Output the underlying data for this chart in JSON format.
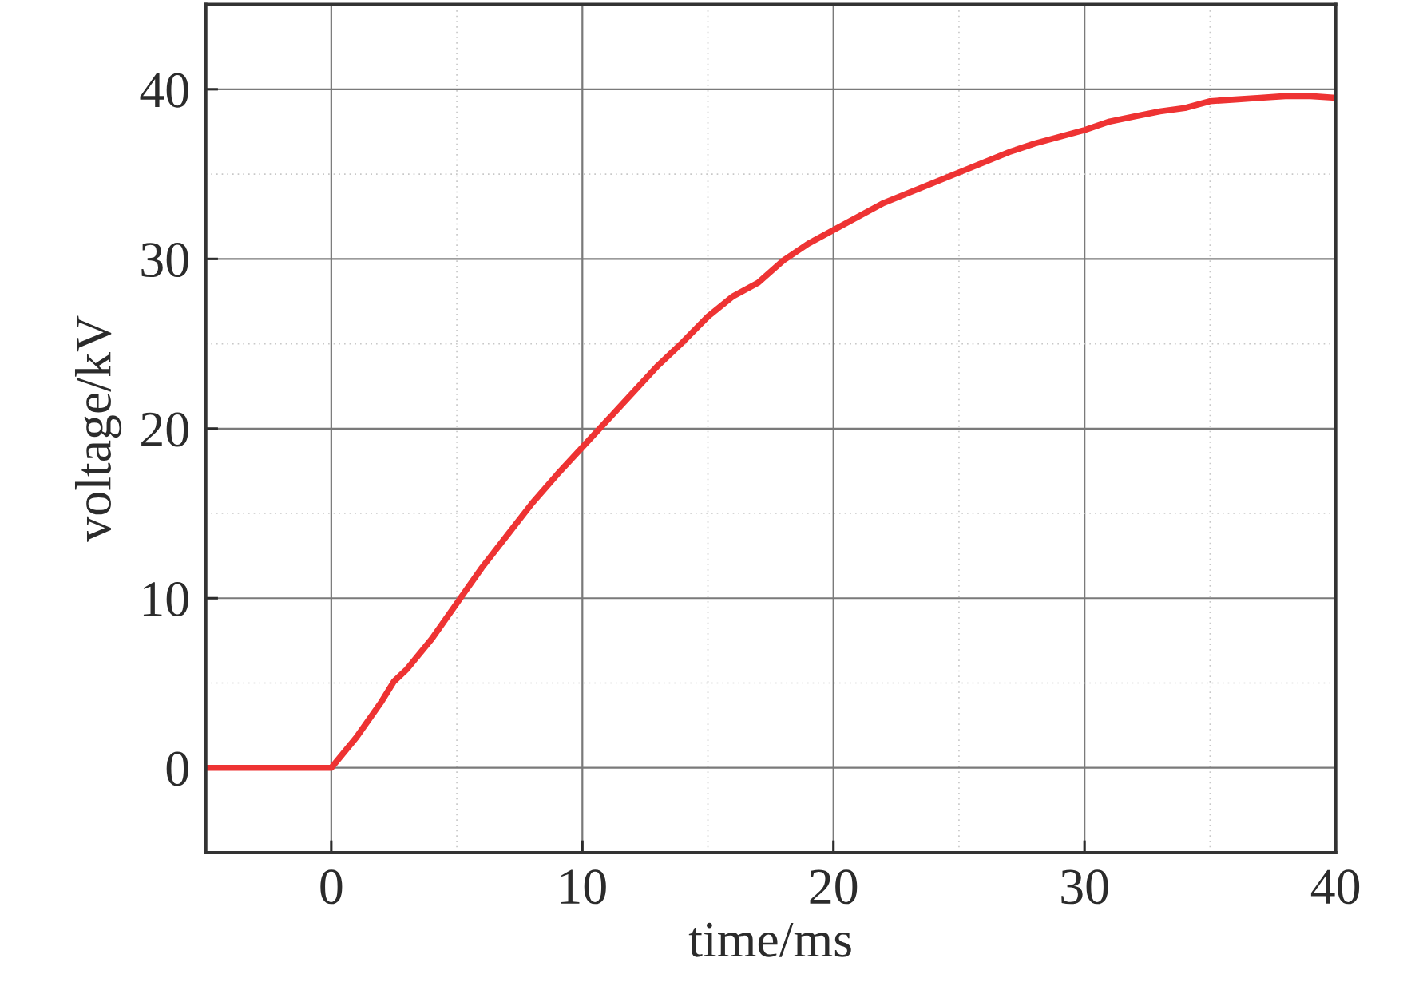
{
  "chart_data": {
    "type": "line",
    "xlabel": "time/ms",
    "ylabel": "voltage/kV",
    "xlim": [
      -5,
      40
    ],
    "ylim": [
      -5,
      45
    ],
    "xticks": [
      0,
      {
        "value": 5,
        "label": null
      },
      10,
      {
        "value": 15,
        "label": null
      },
      20,
      {
        "value": 25,
        "label": null
      },
      30,
      {
        "value": 35,
        "label": null
      },
      40
    ],
    "yticks": [
      0,
      {
        "value": 5,
        "label": null
      },
      10,
      {
        "value": 15,
        "label": null
      },
      20,
      {
        "value": 25,
        "label": null
      },
      30,
      {
        "value": 35,
        "label": null
      },
      40
    ],
    "grid": true,
    "x": [
      -5,
      -2.5,
      0,
      1,
      2,
      2.5,
      3,
      4,
      5,
      6,
      7,
      8,
      9,
      10,
      11,
      12,
      13,
      14,
      15,
      16,
      17,
      18,
      19,
      20,
      21,
      22,
      23,
      24,
      25,
      26,
      27,
      28,
      29,
      30,
      31,
      32,
      33,
      34,
      35,
      36,
      37,
      38,
      39,
      40
    ],
    "series": [
      {
        "color": "#ee3333",
        "values": [
          0,
          0,
          0,
          1.8,
          3.9,
          5.1,
          5.8,
          7.6,
          9.7,
          11.8,
          13.7,
          15.6,
          17.3,
          18.9,
          20.5,
          22.1,
          23.7,
          25.1,
          26.6,
          27.8,
          28.6,
          29.9,
          30.9,
          31.7,
          32.5,
          33.3,
          33.9,
          34.5,
          35.1,
          35.7,
          36.3,
          36.8,
          37.2,
          37.6,
          38.1,
          38.4,
          38.7,
          38.9,
          39.3,
          39.4,
          39.5,
          39.6,
          39.6,
          39.5
        ]
      }
    ]
  }
}
